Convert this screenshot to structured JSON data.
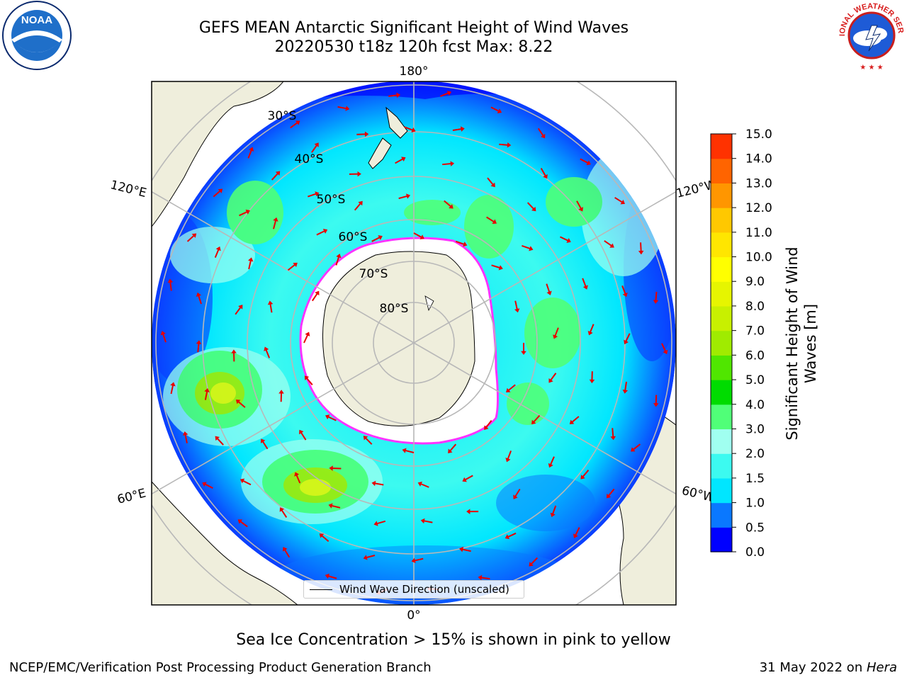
{
  "title": {
    "line1": "GEFS MEAN Antarctic Significant Height of Wind Waves",
    "line2": "20220530 t18z 120h fcst   Max: 8.22"
  },
  "logos": {
    "left": "noaa-logo",
    "left_text": "NOAA",
    "right": "national-weather-service-logo",
    "right_text": "NATIONAL WEATHER SERVICE"
  },
  "map": {
    "projection": "south-polar-stereographic",
    "lat_labels": [
      "30°S",
      "40°S",
      "50°S",
      "60°S",
      "70°S",
      "80°S"
    ],
    "lon_labels": {
      "top": "180°",
      "bottom": "0°",
      "upper_left": "120°E",
      "lower_left": "60°E",
      "upper_right": "120°W",
      "lower_right": "60°W"
    },
    "colors": {
      "land": "#efeedc",
      "ice": "#ffffff",
      "ice_edge": "#ff33ff",
      "arrow": "#e80000",
      "grid": "#b8b8b8"
    }
  },
  "legend": {
    "label": "Wind Wave Direction (unscaled)"
  },
  "colorbar": {
    "label_line1": "Significant Height of Wind",
    "label_line2": "Waves [m]",
    "ticks": [
      "0.0",
      "0.5",
      "1.0",
      "1.5",
      "2.0",
      "3.0",
      "4.0",
      "5.0",
      "6.0",
      "7.0",
      "8.0",
      "9.0",
      "10.0",
      "11.0",
      "12.0",
      "13.0",
      "14.0",
      "15.0"
    ],
    "colors": [
      "#0000ff",
      "#0a78ff",
      "#00e6ff",
      "#3cfaf0",
      "#a0fff0",
      "#50ff78",
      "#00dc00",
      "#50e600",
      "#a0eb00",
      "#c8f000",
      "#e6f500",
      "#ffff00",
      "#ffe600",
      "#ffc800",
      "#ff9600",
      "#ff6400",
      "#ff3200",
      "#ff0000"
    ]
  },
  "footer": {
    "note": "Sea Ice Concentration > 15% is shown in pink to yellow",
    "credit": "NCEP/EMC/Verification Post Processing Product Generation Branch",
    "date": "31 May 2022 on ",
    "machine": "Hera"
  }
}
